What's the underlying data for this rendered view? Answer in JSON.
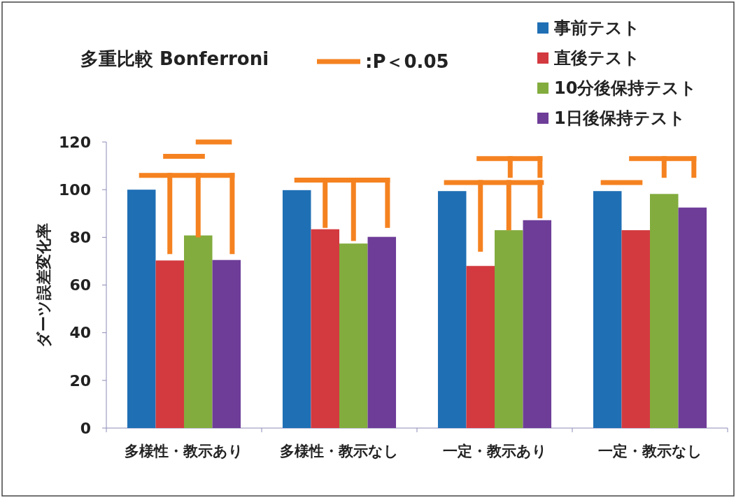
{
  "chart_data": {
    "type": "bar",
    "title": "多重比較  Bonferroni",
    "ylabel": "ダーツ誤差変化率",
    "annotations": [
      ":P＜0.05"
    ],
    "categories": [
      "多様性・教示あり",
      "多様性・教示なし",
      "一定・教示あり",
      "一定・教示なし"
    ],
    "series": [
      {
        "name": "事前テスト",
        "color": "#1f6fb5",
        "values": [
          100,
          99.8,
          99.4,
          99.4
        ]
      },
      {
        "name": "直後テスト",
        "color": "#d23a3f",
        "values": [
          70.3,
          83.4,
          68,
          83
        ]
      },
      {
        "name": "10分後保持テスト",
        "color": "#82ac3e",
        "values": [
          80.8,
          77.4,
          83,
          98.2
        ]
      },
      {
        "name": "1日後保持テスト",
        "color": "#6e3d98",
        "values": [
          70.5,
          80.2,
          87.2,
          92.5
        ]
      }
    ],
    "ylim": [
      0,
      120
    ],
    "yticks": [
      0,
      20,
      40,
      60,
      80,
      100,
      120
    ],
    "legend": "top right"
  }
}
